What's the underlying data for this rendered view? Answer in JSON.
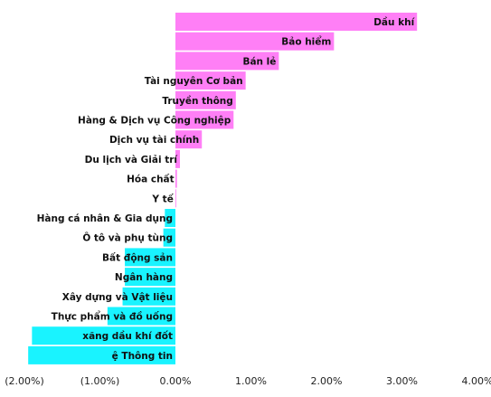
{
  "chart_data": {
    "type": "bar",
    "orientation": "horizontal",
    "categories": [
      "Dầu khí",
      "Bảo hiểm",
      "Bán lẻ",
      "Tài nguyên Cơ bản",
      "Truyền thông",
      "Hàng & Dịch vụ Công nghiệp",
      "Dịch vụ tài chính",
      "Du lịch và Giải trí",
      "Hóa chất",
      "Y tế",
      "Hàng cá nhân & Gia dụng",
      "Ô tô và phụ tùng",
      "Bất động sản",
      "Ngân hàng",
      "Xây dựng và Vật liệu",
      "Thực phẩm và đồ uống",
      "xăng dầu khí đốt",
      "ệ Thông tin"
    ],
    "values": [
      3.2,
      2.1,
      1.37,
      0.93,
      0.8,
      0.77,
      0.35,
      0.06,
      0.02,
      0.01,
      -0.14,
      -0.16,
      -0.67,
      -0.67,
      -0.7,
      -0.9,
      -1.9,
      -1.95
    ],
    "unit": "%",
    "xlim": [
      -2.0,
      4.0
    ],
    "xticks": [
      -2.0,
      -1.0,
      0.0,
      1.0,
      2.0,
      3.0,
      4.0
    ],
    "xtick_labels": [
      "(2.00%)",
      "(1.00%)",
      "0.00%",
      "1.00%",
      "2.00%",
      "3.00%",
      "4.00%"
    ],
    "title": "",
    "xlabel": "",
    "ylabel": "",
    "grid": false,
    "legend": "none",
    "colors": {
      "positive": "#ff7ff6",
      "negative": "#19f3ff"
    }
  }
}
